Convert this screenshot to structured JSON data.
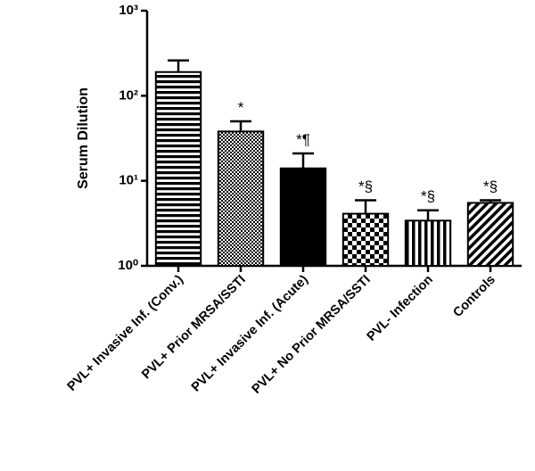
{
  "chart_data": {
    "type": "bar",
    "y_label": "Serum Dilution",
    "categories": [
      "PVL+ Invasive Inf. (Conv.)",
      "PVL+ Prior MRSA/SSTI",
      "PVL+ Invasive Inf. (Acute)",
      "PVL+ No Prior MRSA/SSTI",
      "PVL- Infection",
      "Controls"
    ],
    "values": [
      190,
      38,
      14,
      4.1,
      3.4,
      5.5
    ],
    "errors": [
      70,
      12,
      7,
      1.8,
      1.1,
      0.4
    ],
    "annotations": [
      null,
      "*",
      "*¶",
      "*§",
      "*§",
      "*§"
    ],
    "patterns": [
      "hstripe",
      "finecheck",
      "solid",
      "coarsecheck",
      "vstripe",
      "diagonal"
    ],
    "color": "#000000",
    "log_scale": true,
    "ylim": [
      1,
      1000
    ],
    "yticks": [
      {
        "value": 1,
        "label": "10⁰"
      },
      {
        "value": 10,
        "label": "10¹"
      },
      {
        "value": 100,
        "label": "10²"
      },
      {
        "value": 1000,
        "label": "10³"
      }
    ]
  }
}
